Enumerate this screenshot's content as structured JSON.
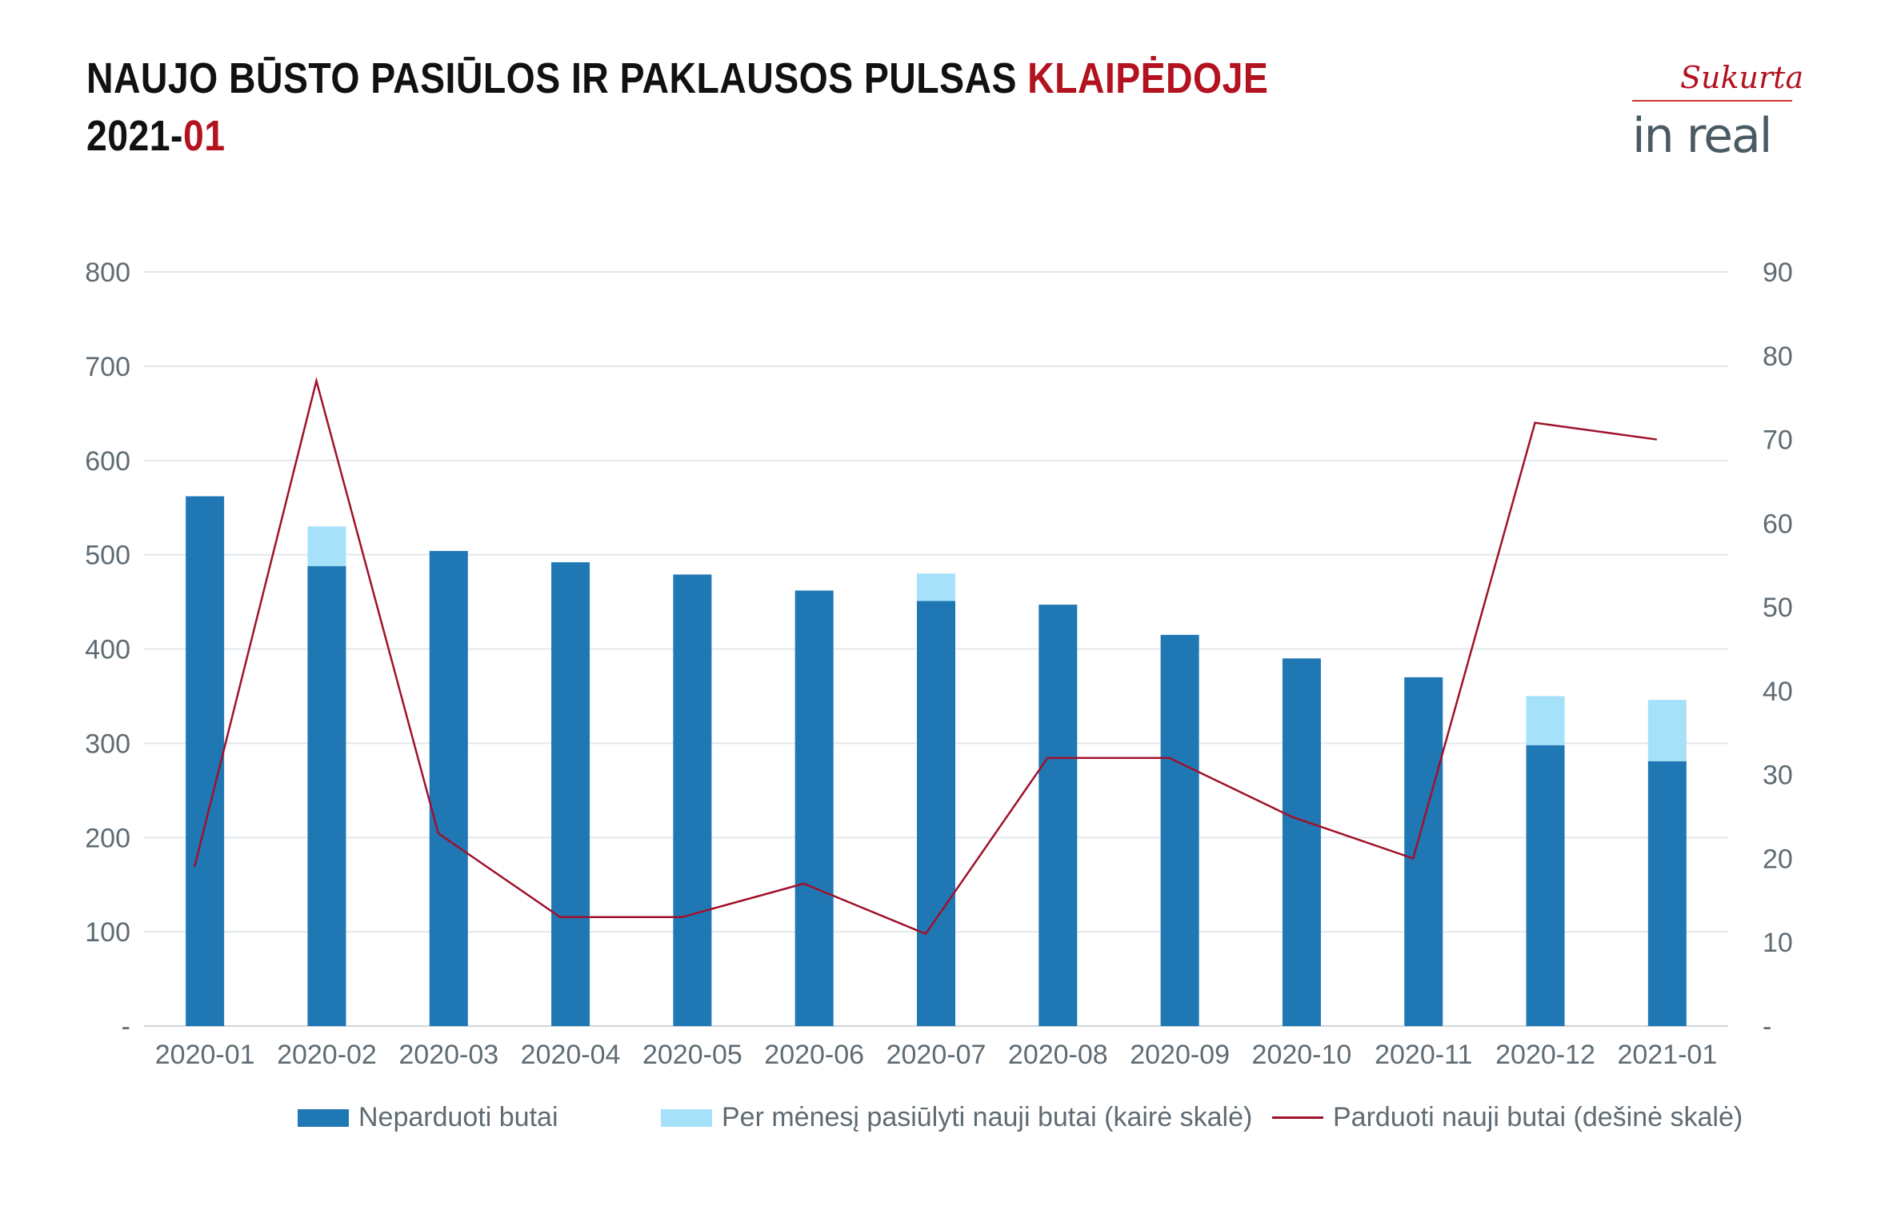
{
  "header": {
    "title_main": "NAUJO BŪSTO PASIŪLOS IR PAKLAUSOS PULSAS ",
    "title_city": "KLAIPĖDOJE",
    "subtitle_year": "2021-",
    "subtitle_month": "01"
  },
  "logo": {
    "tagline": "Sukurta",
    "brand": "in real"
  },
  "colors": {
    "unsold": "#1f77b4",
    "offered": "#a6e1fa",
    "sold_line": "#a0112b",
    "grid": "#e3e8ec",
    "accent": "#b3121f"
  },
  "chart_data": {
    "type": "bar",
    "categories": [
      "2020-01",
      "2020-02",
      "2020-03",
      "2020-04",
      "2020-05",
      "2020-06",
      "2020-07",
      "2020-08",
      "2020-09",
      "2020-10",
      "2020-11",
      "2020-12",
      "2021-01"
    ],
    "series": [
      {
        "name": "Neparduoti butai",
        "type": "bar",
        "axis": "left",
        "stack": "s",
        "values": [
          562,
          488,
          504,
          492,
          479,
          462,
          451,
          447,
          415,
          390,
          370,
          298,
          281
        ]
      },
      {
        "name": "Per mėnesį pasiūlyti nauji butai (kairė skalė)",
        "type": "bar",
        "axis": "left",
        "stack": "s",
        "values": [
          0,
          42,
          0,
          0,
          0,
          0,
          29,
          0,
          0,
          0,
          0,
          52,
          65
        ]
      },
      {
        "name": "Parduoti nauji butai (dešinė skalė)",
        "type": "line",
        "axis": "right",
        "values": [
          19,
          77,
          23,
          13,
          13,
          17,
          11,
          32,
          32,
          25,
          20,
          72,
          70
        ]
      }
    ],
    "left_axis": {
      "ylim": [
        0,
        800
      ],
      "ticks": [
        "-",
        "100",
        "200",
        "300",
        "400",
        "500",
        "600",
        "700",
        "800"
      ]
    },
    "right_axis": {
      "ylim": [
        0,
        90
      ],
      "ticks": [
        "-",
        "10",
        "20",
        "30",
        "40",
        "50",
        "60",
        "70",
        "80",
        "90"
      ]
    },
    "grid": true,
    "legend_position": "bottom"
  }
}
